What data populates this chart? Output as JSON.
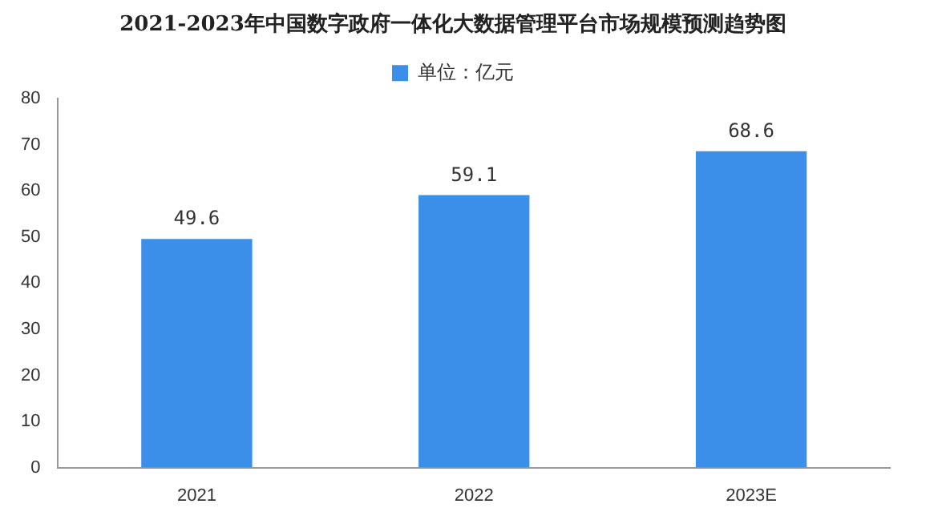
{
  "chart_data": {
    "type": "bar",
    "title": "2021-2023年中国数字政府一体化大数据管理平台市场规模预测趋势图",
    "categories": [
      "2021",
      "2022",
      "2023E"
    ],
    "series": [
      {
        "name": "单位：亿元",
        "color": "#3b8fe8",
        "values": [
          49.6,
          59.1,
          68.6
        ]
      }
    ],
    "ylim": [
      0,
      80
    ],
    "yticks": [
      0,
      10,
      20,
      30,
      40,
      50,
      60,
      70,
      80
    ],
    "grid": false,
    "legend": "top",
    "data_labels": true
  }
}
